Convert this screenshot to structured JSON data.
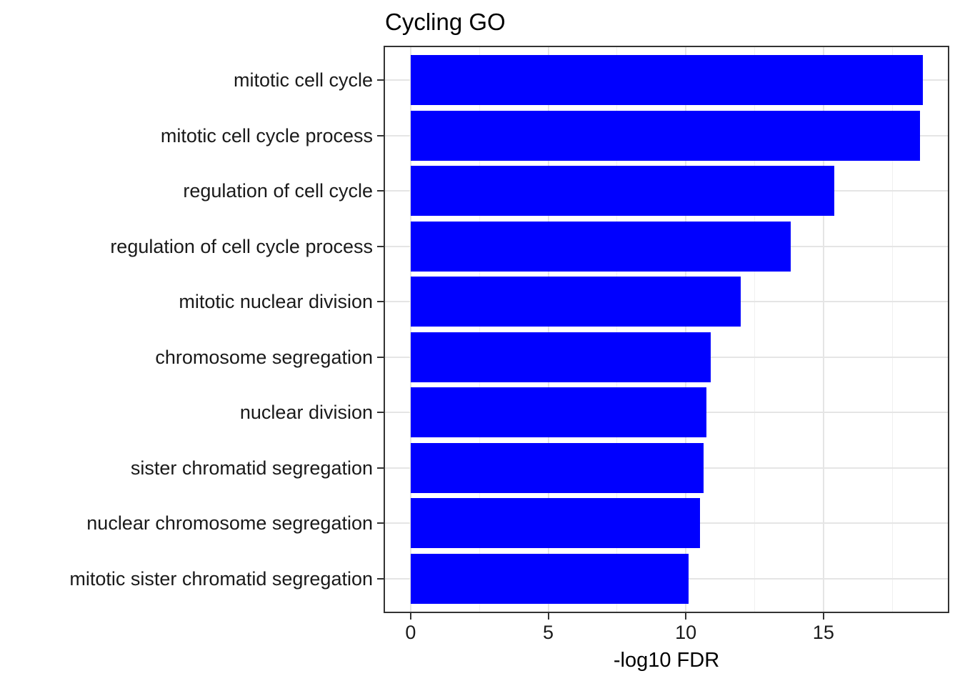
{
  "title": "Cycling GO",
  "chart_data": {
    "type": "bar",
    "orientation": "horizontal",
    "title": "Cycling GO",
    "xlabel": "-log10 FDR",
    "ylabel": "",
    "categories": [
      "mitotic cell cycle",
      "mitotic cell cycle process",
      "regulation of cell cycle",
      "regulation of cell cycle process",
      "mitotic nuclear division",
      "chromosome segregation",
      "nuclear division",
      "sister chromatid segregation",
      "nuclear chromosome segregation",
      "mitotic sister chromatid segregation"
    ],
    "values": [
      18.6,
      18.5,
      15.4,
      13.8,
      12.0,
      10.9,
      10.75,
      10.65,
      10.5,
      10.1
    ],
    "xlim": [
      -0.93,
      19.52
    ],
    "x_major_ticks": [
      0,
      5,
      10,
      15
    ],
    "x_major_tick_labels": [
      "0",
      "5",
      "10",
      "15"
    ],
    "x_minor_ticks": [
      2.5,
      7.5,
      12.5,
      17.5
    ],
    "grid": "on",
    "legend": "none",
    "colors": {
      "bar": "#0000ff",
      "panel_border": "#333333",
      "tick": "#333333",
      "grid_major": "#e5e5e5",
      "grid_minor": "#f0f0f0",
      "text": "#1a1a1a"
    }
  }
}
